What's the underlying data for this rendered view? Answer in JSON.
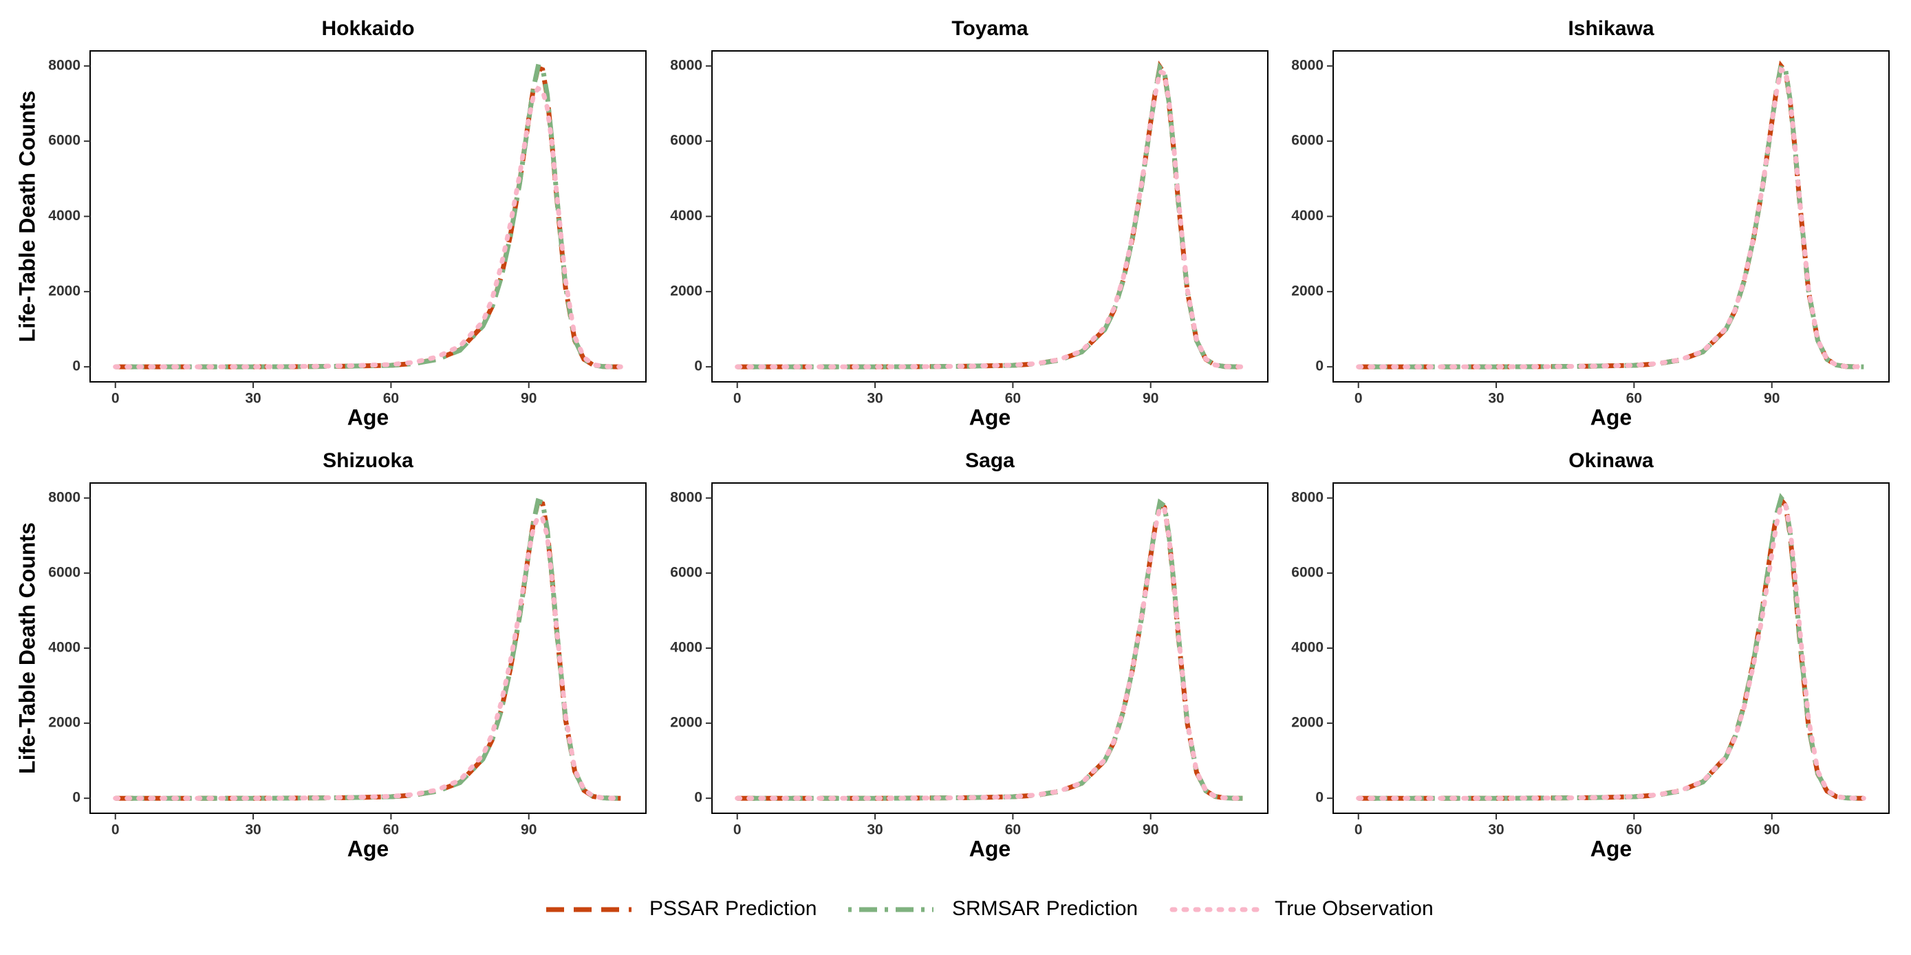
{
  "chart_data": [
    {
      "type": "line",
      "title": "Hokkaido",
      "xlabel": "Age",
      "ylabel": "Life-Table Death Counts",
      "x": [
        0,
        10,
        20,
        30,
        40,
        50,
        60,
        65,
        70,
        75,
        80,
        82,
        84,
        86,
        88,
        90,
        91,
        92,
        93,
        94,
        95,
        96,
        98,
        100,
        102,
        104,
        106,
        108,
        110
      ],
      "xlim": [
        -5.5,
        115.5
      ],
      "ylim": [
        -400,
        8400
      ],
      "xticks": [
        0,
        30,
        60,
        90
      ],
      "yticks": [
        0,
        2000,
        4000,
        6000,
        8000
      ],
      "series": [
        {
          "name": "PSSAR Prediction",
          "color": "#c8440f",
          "linestyle": "dashed",
          "values": [
            0,
            0,
            0,
            0,
            5,
            15,
            40,
            90,
            200,
            450,
            1100,
            1600,
            2400,
            3500,
            4900,
            6600,
            7400,
            7950,
            7900,
            7200,
            6000,
            4600,
            2100,
            700,
            200,
            50,
            10,
            2,
            0
          ]
        },
        {
          "name": "SRMSAR Prediction",
          "color": "#7fb27f",
          "linestyle": "dashdot",
          "values": [
            0,
            0,
            0,
            0,
            5,
            15,
            40,
            85,
            195,
            440,
            1080,
            1580,
            2380,
            3480,
            4880,
            6580,
            7400,
            7980,
            7950,
            7250,
            6050,
            4650,
            2150,
            720,
            210,
            50,
            10,
            2,
            0
          ]
        },
        {
          "name": "True Observation",
          "color": "#f9b6c8",
          "linestyle": "dotted",
          "values": [
            0,
            0,
            0,
            0,
            10,
            25,
            60,
            120,
            260,
            550,
            1200,
            1800,
            2700,
            3800,
            5100,
            6600,
            7200,
            7400,
            7350,
            6900,
            6000,
            4700,
            2300,
            800,
            250,
            60,
            15,
            3,
            0
          ]
        }
      ]
    },
    {
      "type": "line",
      "title": "Toyama",
      "xlabel": "Age",
      "x": [
        0,
        10,
        20,
        30,
        40,
        50,
        60,
        65,
        70,
        75,
        80,
        82,
        84,
        86,
        88,
        90,
        91,
        92,
        93,
        94,
        95,
        96,
        98,
        100,
        102,
        104,
        106,
        108,
        110
      ],
      "xlim": [
        -5.5,
        115.5
      ],
      "ylim": [
        -400,
        8400
      ],
      "xticks": [
        0,
        30,
        60,
        90
      ],
      "yticks": [
        0,
        2000,
        4000,
        6000,
        8000
      ],
      "series": [
        {
          "name": "PSSAR Prediction",
          "color": "#c8440f",
          "linestyle": "dashed",
          "values": [
            0,
            0,
            0,
            0,
            5,
            15,
            40,
            80,
            180,
            400,
            1000,
            1500,
            2300,
            3400,
            4800,
            6500,
            7300,
            7980,
            7800,
            7000,
            5800,
            4400,
            2000,
            700,
            200,
            50,
            10,
            2,
            0
          ]
        },
        {
          "name": "SRMSAR Prediction",
          "color": "#7fb27f",
          "linestyle": "dashdot",
          "values": [
            0,
            0,
            0,
            0,
            5,
            15,
            40,
            80,
            175,
            395,
            990,
            1490,
            2290,
            3390,
            4790,
            6490,
            7290,
            7960,
            7820,
            7020,
            5820,
            4420,
            2010,
            700,
            200,
            50,
            10,
            2,
            0
          ]
        },
        {
          "name": "True Observation",
          "color": "#f9b6c8",
          "linestyle": "dotted",
          "values": [
            0,
            0,
            0,
            0,
            5,
            15,
            45,
            85,
            190,
            420,
            1050,
            1550,
            2350,
            3450,
            4850,
            6500,
            7250,
            7850,
            7800,
            7050,
            5900,
            4500,
            2050,
            720,
            210,
            50,
            10,
            2,
            0
          ]
        }
      ]
    },
    {
      "type": "line",
      "title": "Ishikawa",
      "xlabel": "Age",
      "x": [
        0,
        10,
        20,
        30,
        40,
        50,
        60,
        65,
        70,
        75,
        80,
        82,
        84,
        86,
        88,
        90,
        91,
        92,
        93,
        94,
        95,
        96,
        98,
        100,
        102,
        104,
        106,
        108,
        110
      ],
      "xlim": [
        -5.5,
        115.5
      ],
      "ylim": [
        -400,
        8400
      ],
      "xticks": [
        0,
        30,
        60,
        90
      ],
      "yticks": [
        0,
        2000,
        4000,
        6000,
        8000
      ],
      "series": [
        {
          "name": "PSSAR Prediction",
          "color": "#c8440f",
          "linestyle": "dashed",
          "values": [
            0,
            0,
            0,
            0,
            5,
            15,
            40,
            80,
            180,
            400,
            1000,
            1500,
            2300,
            3400,
            4800,
            6500,
            7350,
            8000,
            7850,
            7050,
            5850,
            4450,
            2000,
            700,
            200,
            50,
            10,
            2,
            0
          ]
        },
        {
          "name": "SRMSAR Prediction",
          "color": "#7fb27f",
          "linestyle": "dashdot",
          "values": [
            0,
            0,
            0,
            0,
            5,
            15,
            40,
            80,
            180,
            400,
            1000,
            1500,
            2300,
            3400,
            4800,
            6500,
            7350,
            8010,
            7880,
            7080,
            5880,
            4480,
            2020,
            700,
            200,
            50,
            10,
            2,
            0
          ]
        },
        {
          "name": "True Observation",
          "color": "#f9b6c8",
          "linestyle": "dotted",
          "values": [
            0,
            0,
            0,
            0,
            5,
            15,
            40,
            85,
            185,
            410,
            1020,
            1520,
            2320,
            3420,
            4820,
            6500,
            7300,
            7900,
            7850,
            7100,
            5900,
            4500,
            2050,
            710,
            200,
            50,
            10,
            2,
            0
          ]
        }
      ]
    },
    {
      "type": "line",
      "title": "Shizuoka",
      "xlabel": "Age",
      "ylabel": "Life-Table Death Counts",
      "x": [
        0,
        10,
        20,
        30,
        40,
        50,
        60,
        65,
        70,
        75,
        80,
        82,
        84,
        86,
        88,
        90,
        91,
        92,
        93,
        94,
        95,
        96,
        98,
        100,
        102,
        104,
        106,
        108,
        110
      ],
      "xlim": [
        -5.5,
        115.5
      ],
      "ylim": [
        -400,
        8400
      ],
      "xticks": [
        0,
        30,
        60,
        90
      ],
      "yticks": [
        0,
        2000,
        4000,
        6000,
        8000
      ],
      "series": [
        {
          "name": "PSSAR Prediction",
          "color": "#c8440f",
          "linestyle": "dashed",
          "values": [
            0,
            0,
            0,
            0,
            5,
            15,
            40,
            85,
            190,
            420,
            1050,
            1550,
            2350,
            3450,
            4850,
            6550,
            7350,
            7900,
            7850,
            7150,
            5950,
            4550,
            2100,
            720,
            210,
            50,
            10,
            2,
            0
          ]
        },
        {
          "name": "SRMSAR Prediction",
          "color": "#7fb27f",
          "linestyle": "dashdot",
          "values": [
            0,
            0,
            0,
            0,
            5,
            15,
            40,
            85,
            185,
            415,
            1040,
            1540,
            2340,
            3440,
            4840,
            6540,
            7350,
            7920,
            7880,
            7180,
            5980,
            4580,
            2120,
            730,
            210,
            50,
            10,
            2,
            0
          ]
        },
        {
          "name": "True Observation",
          "color": "#f9b6c8",
          "linestyle": "dotted",
          "values": [
            0,
            0,
            0,
            0,
            5,
            20,
            50,
            100,
            220,
            480,
            1150,
            1700,
            2550,
            3650,
            5000,
            6550,
            7200,
            7500,
            7450,
            7000,
            5900,
            4600,
            2200,
            760,
            230,
            55,
            12,
            2,
            0
          ]
        }
      ]
    },
    {
      "type": "line",
      "title": "Saga",
      "xlabel": "Age",
      "x": [
        0,
        10,
        20,
        30,
        40,
        50,
        60,
        65,
        70,
        75,
        80,
        82,
        84,
        86,
        88,
        90,
        91,
        92,
        93,
        94,
        95,
        96,
        98,
        100,
        102,
        104,
        106,
        108,
        110
      ],
      "xlim": [
        -5.5,
        115.5
      ],
      "ylim": [
        -400,
        8400
      ],
      "xticks": [
        0,
        30,
        60,
        90
      ],
      "yticks": [
        0,
        2000,
        4000,
        6000,
        8000
      ],
      "series": [
        {
          "name": "PSSAR Prediction",
          "color": "#c8440f",
          "linestyle": "dashed",
          "values": [
            0,
            0,
            0,
            0,
            5,
            15,
            40,
            80,
            180,
            400,
            1000,
            1500,
            2300,
            3400,
            4800,
            6450,
            7250,
            7850,
            7750,
            6950,
            5750,
            4350,
            1980,
            690,
            200,
            50,
            10,
            2,
            0
          ]
        },
        {
          "name": "SRMSAR Prediction",
          "color": "#7fb27f",
          "linestyle": "dashdot",
          "values": [
            0,
            0,
            0,
            0,
            5,
            15,
            40,
            80,
            180,
            400,
            1000,
            1500,
            2300,
            3400,
            4800,
            6450,
            7260,
            7880,
            7790,
            6990,
            5790,
            4390,
            2000,
            700,
            200,
            50,
            10,
            2,
            0
          ]
        },
        {
          "name": "True Observation",
          "color": "#f9b6c8",
          "linestyle": "dotted",
          "values": [
            0,
            0,
            0,
            0,
            5,
            15,
            40,
            85,
            185,
            410,
            1020,
            1520,
            2320,
            3420,
            4800,
            6400,
            7200,
            7750,
            7700,
            6950,
            5800,
            4400,
            2020,
            710,
            205,
            50,
            10,
            2,
            0
          ]
        }
      ]
    },
    {
      "type": "line",
      "title": "Okinawa",
      "xlabel": "Age",
      "x": [
        0,
        10,
        20,
        30,
        40,
        50,
        60,
        65,
        70,
        75,
        80,
        82,
        84,
        86,
        88,
        90,
        91,
        92,
        93,
        94,
        95,
        96,
        98,
        100,
        102,
        104,
        106,
        108,
        110
      ],
      "xlim": [
        -5.5,
        115.5
      ],
      "ylim": [
        -400,
        8400
      ],
      "xticks": [
        0,
        30,
        60,
        90
      ],
      "yticks": [
        0,
        2000,
        4000,
        6000,
        8000
      ],
      "series": [
        {
          "name": "PSSAR Prediction",
          "color": "#c8440f",
          "linestyle": "dashed",
          "values": [
            0,
            0,
            0,
            0,
            5,
            15,
            40,
            85,
            195,
            440,
            1100,
            1650,
            2500,
            3650,
            5100,
            6800,
            7550,
            7950,
            7800,
            7000,
            5700,
            4300,
            1900,
            650,
            190,
            45,
            10,
            2,
            0
          ]
        },
        {
          "name": "SRMSAR Prediction",
          "color": "#7fb27f",
          "linestyle": "dashdot",
          "values": [
            0,
            0,
            0,
            0,
            5,
            15,
            40,
            85,
            190,
            435,
            1090,
            1640,
            2490,
            3640,
            5090,
            6790,
            7560,
            8000,
            7850,
            7050,
            5750,
            4350,
            1920,
            660,
            190,
            45,
            10,
            2,
            0
          ]
        },
        {
          "name": "True Observation",
          "color": "#f9b6c8",
          "linestyle": "dotted",
          "values": [
            0,
            0,
            0,
            0,
            5,
            15,
            45,
            90,
            200,
            450,
            1100,
            1620,
            2450,
            3550,
            4900,
            6500,
            7300,
            7800,
            7800,
            7150,
            6000,
            4600,
            2100,
            720,
            210,
            50,
            10,
            2,
            0
          ]
        }
      ]
    }
  ]
}
